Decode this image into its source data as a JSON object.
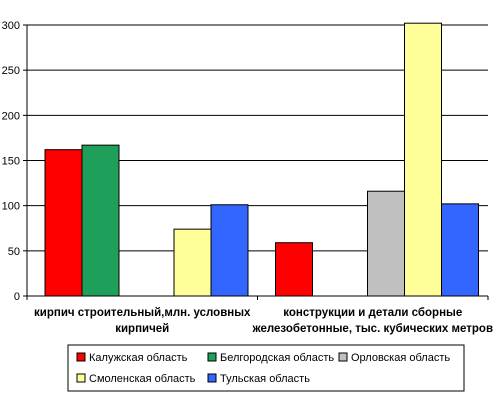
{
  "chart_data": {
    "type": "bar",
    "categories": [
      [
        "кирпич строительный,млн. условных",
        "кирпичей"
      ],
      [
        "конструкции и детали сборные",
        "железобетонные, тыс. кубических метров"
      ]
    ],
    "series": [
      {
        "name": "Калужская область",
        "color": "#FF0000",
        "values": [
          162,
          59
        ]
      },
      {
        "name": "Белгородская область",
        "color": "#1FA05A",
        "values": [
          167,
          null
        ]
      },
      {
        "name": "Орловская область",
        "color": "#C0C0C0",
        "values": [
          null,
          116
        ]
      },
      {
        "name": "Смоленская область",
        "color": "#FFFF99",
        "values": [
          74,
          302
        ]
      },
      {
        "name": "Тульская область",
        "color": "#3366FF",
        "values": [
          101,
          102
        ]
      }
    ],
    "y_ticks": [
      "0",
      "50",
      "100",
      "150",
      "200",
      "250",
      "300"
    ],
    "ylim": [
      0,
      300
    ],
    "grid": true,
    "legend": "bottom"
  }
}
